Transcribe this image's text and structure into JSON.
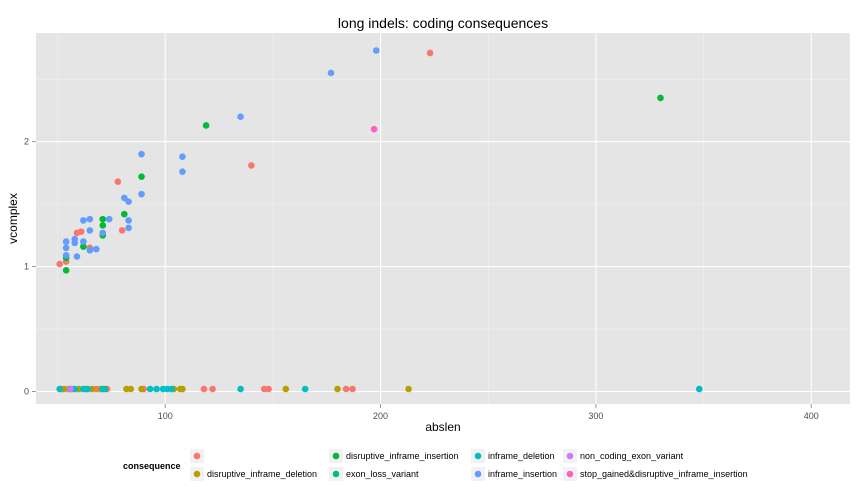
{
  "chart_data": {
    "type": "scatter",
    "title": "long indels: coding consequences",
    "xlabel": "abslen",
    "ylabel": "vcomplex",
    "xlim": [
      40,
      418
    ],
    "ylim": [
      -0.1,
      2.87
    ],
    "x_ticks": [
      100,
      200,
      300,
      400
    ],
    "y_ticks": [
      0,
      1,
      2
    ],
    "grid": true,
    "legend": {
      "position": "bottom",
      "title": "consequence"
    },
    "series": [
      {
        "name": "",
        "color": "#F8766D",
        "points": [
          [
            51,
            1.02
          ],
          [
            54,
            1.04
          ],
          [
            59,
            1.27
          ],
          [
            61,
            1.28
          ],
          [
            65,
            1.15
          ],
          [
            78,
            1.68
          ],
          [
            80,
            1.29
          ],
          [
            140,
            1.81
          ],
          [
            223,
            2.71
          ],
          [
            52,
            0.02
          ],
          [
            55,
            0.02
          ],
          [
            57,
            0.02
          ],
          [
            68,
            0.02
          ],
          [
            73,
            0.02
          ],
          [
            90,
            0.02
          ],
          [
            118,
            0.02
          ],
          [
            122,
            0.02
          ],
          [
            146,
            0.02
          ],
          [
            148,
            0.02
          ],
          [
            184,
            0.02
          ],
          [
            187,
            0.02
          ]
        ]
      },
      {
        "name": "disruptive_inframe_deletion",
        "color": "#B79F00",
        "points": [
          [
            53,
            0.02
          ],
          [
            56,
            0.02
          ],
          [
            60,
            0.02
          ],
          [
            63,
            0.02
          ],
          [
            66,
            0.02
          ],
          [
            70,
            0.02
          ],
          [
            82,
            0.02
          ],
          [
            84,
            0.02
          ],
          [
            89,
            0.02
          ],
          [
            104,
            0.02
          ],
          [
            107,
            0.02
          ],
          [
            108,
            0.02
          ],
          [
            156,
            0.02
          ],
          [
            180,
            0.02
          ],
          [
            213,
            0.02
          ]
        ]
      },
      {
        "name": "disruptive_inframe_insertion",
        "color": "#00BA38",
        "points": [
          [
            54,
            0.97
          ],
          [
            54,
            1.07
          ],
          [
            62,
            1.16
          ],
          [
            71,
            1.38
          ],
          [
            71,
            1.33
          ],
          [
            71,
            1.25
          ],
          [
            81,
            1.42
          ],
          [
            89,
            1.72
          ],
          [
            119,
            2.13
          ],
          [
            330,
            2.35
          ]
        ]
      },
      {
        "name": "exon_loss_variant",
        "color": "#00C08B",
        "points": [
          [
            72,
            0.02
          ]
        ]
      },
      {
        "name": "inframe_deletion",
        "color": "#00BFC4",
        "points": [
          [
            51,
            0.02
          ],
          [
            58,
            0.02
          ],
          [
            62,
            0.02
          ],
          [
            64,
            0.02
          ],
          [
            71,
            0.02
          ],
          [
            93,
            0.02
          ],
          [
            96,
            0.02
          ],
          [
            99,
            0.02
          ],
          [
            101,
            0.02
          ],
          [
            103,
            0.02
          ],
          [
            135,
            0.02
          ],
          [
            165,
            0.02
          ],
          [
            348,
            0.02
          ]
        ]
      },
      {
        "name": "inframe_insertion",
        "color": "#619CFF",
        "points": [
          [
            54,
            1.2
          ],
          [
            54,
            1.15
          ],
          [
            54,
            1.09
          ],
          [
            58,
            1.22
          ],
          [
            58,
            1.19
          ],
          [
            59,
            1.08
          ],
          [
            62,
            1.37
          ],
          [
            62,
            1.2
          ],
          [
            65,
            1.38
          ],
          [
            65,
            1.29
          ],
          [
            65,
            1.13
          ],
          [
            68,
            1.14
          ],
          [
            71,
            1.27
          ],
          [
            74,
            1.38
          ],
          [
            81,
            1.55
          ],
          [
            83,
            1.52
          ],
          [
            83,
            1.37
          ],
          [
            83,
            1.31
          ],
          [
            89,
            1.9
          ],
          [
            89,
            1.58
          ],
          [
            108,
            1.88
          ],
          [
            108,
            1.76
          ],
          [
            135,
            2.2
          ],
          [
            177,
            2.55
          ],
          [
            198,
            2.73
          ]
        ]
      },
      {
        "name": "non_coding_exon_variant",
        "color": "#C77CFF",
        "points": [
          [
            56,
            0.02
          ]
        ]
      },
      {
        "name": "stop_gained&disruptive_inframe_insertion",
        "color": "#FF61C3",
        "points": [
          [
            197,
            2.1
          ]
        ]
      }
    ]
  }
}
